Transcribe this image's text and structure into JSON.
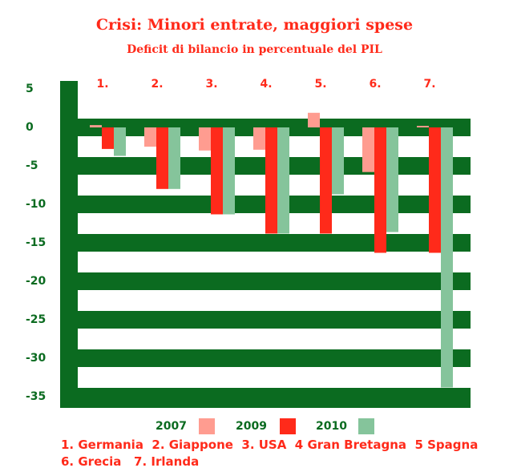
{
  "title": "Crisi: Minori entrate, maggiori spese",
  "subtitle": "Deficit di bilancio in percentuale del PIL",
  "chart_data": {
    "type": "bar",
    "title": "Crisi: Minori entrate, maggiori spese",
    "subtitle": "Deficit di bilancio in percentuale del PIL",
    "categories": [
      "1.",
      "2.",
      "3.",
      "4.",
      "5.",
      "6.",
      "7."
    ],
    "series": [
      {
        "name": "2007",
        "color": "#ff9c90",
        "values": [
          0.3,
          -2.5,
          -3.0,
          -2.9,
          1.9,
          -5.8,
          0.2
        ]
      },
      {
        "name": "2009",
        "color": "#ff2a1a",
        "values": [
          -2.8,
          -8.0,
          -11.3,
          -13.8,
          -13.8,
          -16.3,
          -16.3
        ]
      },
      {
        "name": "2010",
        "color": "#85c49b",
        "values": [
          -3.7,
          -8.0,
          -11.3,
          -13.8,
          -8.7,
          -13.6,
          -33.8
        ]
      }
    ],
    "ylim": [
      -35,
      5
    ],
    "yticks": [
      5,
      0,
      -5,
      -10,
      -15,
      -20,
      -25,
      -30,
      -35
    ],
    "grid": "alternating green bands",
    "legend": "bottom"
  },
  "legend": [
    {
      "label": "2007",
      "color": "#ff9c90"
    },
    {
      "label": "2009",
      "color": "#ff2a1a"
    },
    {
      "label": "2010",
      "color": "#85c49b"
    }
  ],
  "countries_line1": "1. Germania  2. Giappone  3. USA  4 Gran Bretagna  5 Spagna",
  "countries_line2": "6. Grecia   7. Irlanda",
  "colors": {
    "band": "#0b6b20",
    "label": "#ff2a1a",
    "axis_text": "#0b6b20"
  }
}
